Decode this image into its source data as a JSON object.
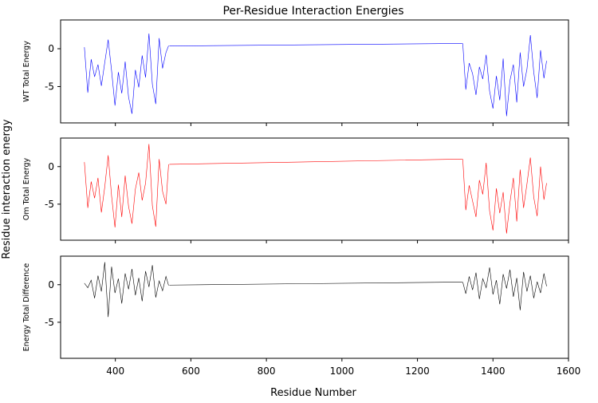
{
  "chart_data": {
    "type": "line",
    "title": "Per-Residue Interaction Energies",
    "xlabel": "Residue Number",
    "ylabel": "Residue interaction energy",
    "xlim": [
      255,
      1600
    ],
    "ylim": [
      -9.8,
      3.8
    ],
    "xticks": [
      400,
      600,
      800,
      1000,
      1200,
      1400,
      1600
    ],
    "yticks": [
      0,
      -5
    ],
    "grid": false,
    "sharex": true,
    "panels": [
      {
        "name": "WT Total Energy",
        "ylabel": "WT Total Energy",
        "color": "#0000ff",
        "bridge": {
          "x": [
            543,
            1319
          ],
          "y": [
            0.35,
            0.7
          ]
        },
        "segments": [
          {
            "x": [
              318,
              327,
              336,
              345,
              354,
              363,
              372,
              381,
              390,
              399,
              408,
              417,
              426,
              435,
              444,
              453,
              462,
              471,
              480,
              489,
              498,
              507,
              516,
              525,
              534,
              541
            ],
            "y": [
              0.2,
              -5.8,
              -1.4,
              -3.7,
              -2.1,
              -4.9,
              -1.8,
              1.2,
              -2.9,
              -7.5,
              -3.1,
              -5.9,
              -1.7,
              -6.4,
              -8.6,
              -2.8,
              -5.1,
              -0.9,
              -3.8,
              2.0,
              -4.7,
              -7.3,
              1.4,
              -2.6,
              -0.5,
              0.4
            ]
          },
          {
            "x": [
              1320,
              1328,
              1337,
              1346,
              1355,
              1364,
              1373,
              1382,
              1391,
              1400,
              1409,
              1418,
              1427,
              1436,
              1445,
              1454,
              1463,
              1472,
              1481,
              1490,
              1499,
              1508,
              1517,
              1526,
              1535,
              1542
            ],
            "y": [
              0.7,
              -5.4,
              -1.9,
              -3.3,
              -6.1,
              -2.4,
              -4.0,
              -0.8,
              -5.6,
              -7.9,
              -3.6,
              -6.8,
              -1.3,
              -8.9,
              -4.2,
              -2.1,
              -7.1,
              -0.5,
              -5.0,
              -2.7,
              1.8,
              -3.1,
              -6.5,
              -0.2,
              -3.9,
              -1.6
            ]
          }
        ]
      },
      {
        "name": "Om Total Energy",
        "ylabel": "Om Total Energy",
        "color": "#ff0000",
        "bridge": {
          "x": [
            543,
            1319
          ],
          "y": [
            0.3,
            1.0
          ]
        },
        "segments": [
          {
            "x": [
              318,
              327,
              336,
              345,
              354,
              363,
              372,
              381,
              390,
              399,
              408,
              417,
              426,
              435,
              444,
              453,
              462,
              471,
              480,
              489,
              498,
              507,
              516,
              525,
              534,
              541
            ],
            "y": [
              0.6,
              -5.5,
              -2.0,
              -4.2,
              -1.5,
              -6.1,
              -2.7,
              1.5,
              -3.9,
              -8.1,
              -2.4,
              -6.7,
              -1.2,
              -5.3,
              -7.6,
              -3.0,
              -0.8,
              -4.5,
              -2.2,
              3.0,
              -5.2,
              -8.0,
              1.0,
              -3.3,
              -5.0,
              0.3
            ]
          },
          {
            "x": [
              1320,
              1328,
              1337,
              1346,
              1355,
              1364,
              1373,
              1382,
              1391,
              1400,
              1409,
              1418,
              1427,
              1436,
              1445,
              1454,
              1463,
              1472,
              1481,
              1490,
              1499,
              1508,
              1517,
              1526,
              1535,
              1542
            ],
            "y": [
              1.0,
              -5.8,
              -2.5,
              -4.6,
              -6.7,
              -1.8,
              -3.7,
              0.5,
              -5.9,
              -8.5,
              -2.9,
              -6.2,
              -3.4,
              -8.9,
              -4.8,
              -1.5,
              -7.3,
              -0.4,
              -5.5,
              -2.3,
              1.2,
              -4.1,
              -6.6,
              0.0,
              -4.4,
              -2.2
            ]
          }
        ]
      },
      {
        "name": "Energy Total Difference",
        "ylabel": "Energy Total Difference",
        "color": "#000000",
        "bridge": {
          "x": [
            543,
            1319
          ],
          "y": [
            -0.05,
            0.35
          ]
        },
        "segments": [
          {
            "x": [
              318,
              327,
              336,
              345,
              354,
              363,
              372,
              381,
              390,
              399,
              408,
              417,
              426,
              435,
              444,
              453,
              462,
              471,
              480,
              489,
              498,
              507,
              516,
              525,
              534,
              541
            ],
            "y": [
              0.2,
              -0.4,
              0.6,
              -1.8,
              1.2,
              -0.9,
              3.0,
              -4.3,
              2.4,
              -1.1,
              0.8,
              -2.5,
              1.5,
              -0.6,
              2.1,
              -1.4,
              0.9,
              -2.2,
              1.8,
              -0.3,
              2.6,
              -1.7,
              0.5,
              -0.8,
              1.1,
              -0.1
            ]
          },
          {
            "x": [
              1320,
              1328,
              1337,
              1346,
              1355,
              1364,
              1373,
              1382,
              1391,
              1400,
              1409,
              1418,
              1427,
              1436,
              1445,
              1454,
              1463,
              1472,
              1481,
              1490,
              1499,
              1508,
              1517,
              1526,
              1535,
              1542
            ],
            "y": [
              0.35,
              -1.2,
              1.1,
              -0.7,
              1.6,
              -1.9,
              0.8,
              -0.4,
              2.3,
              -1.3,
              0.6,
              -2.6,
              1.4,
              -0.5,
              2.0,
              -1.6,
              0.9,
              -3.4,
              1.7,
              -0.9,
              1.2,
              -1.8,
              0.4,
              -1.1,
              1.5,
              -0.2
            ]
          }
        ]
      }
    ]
  }
}
